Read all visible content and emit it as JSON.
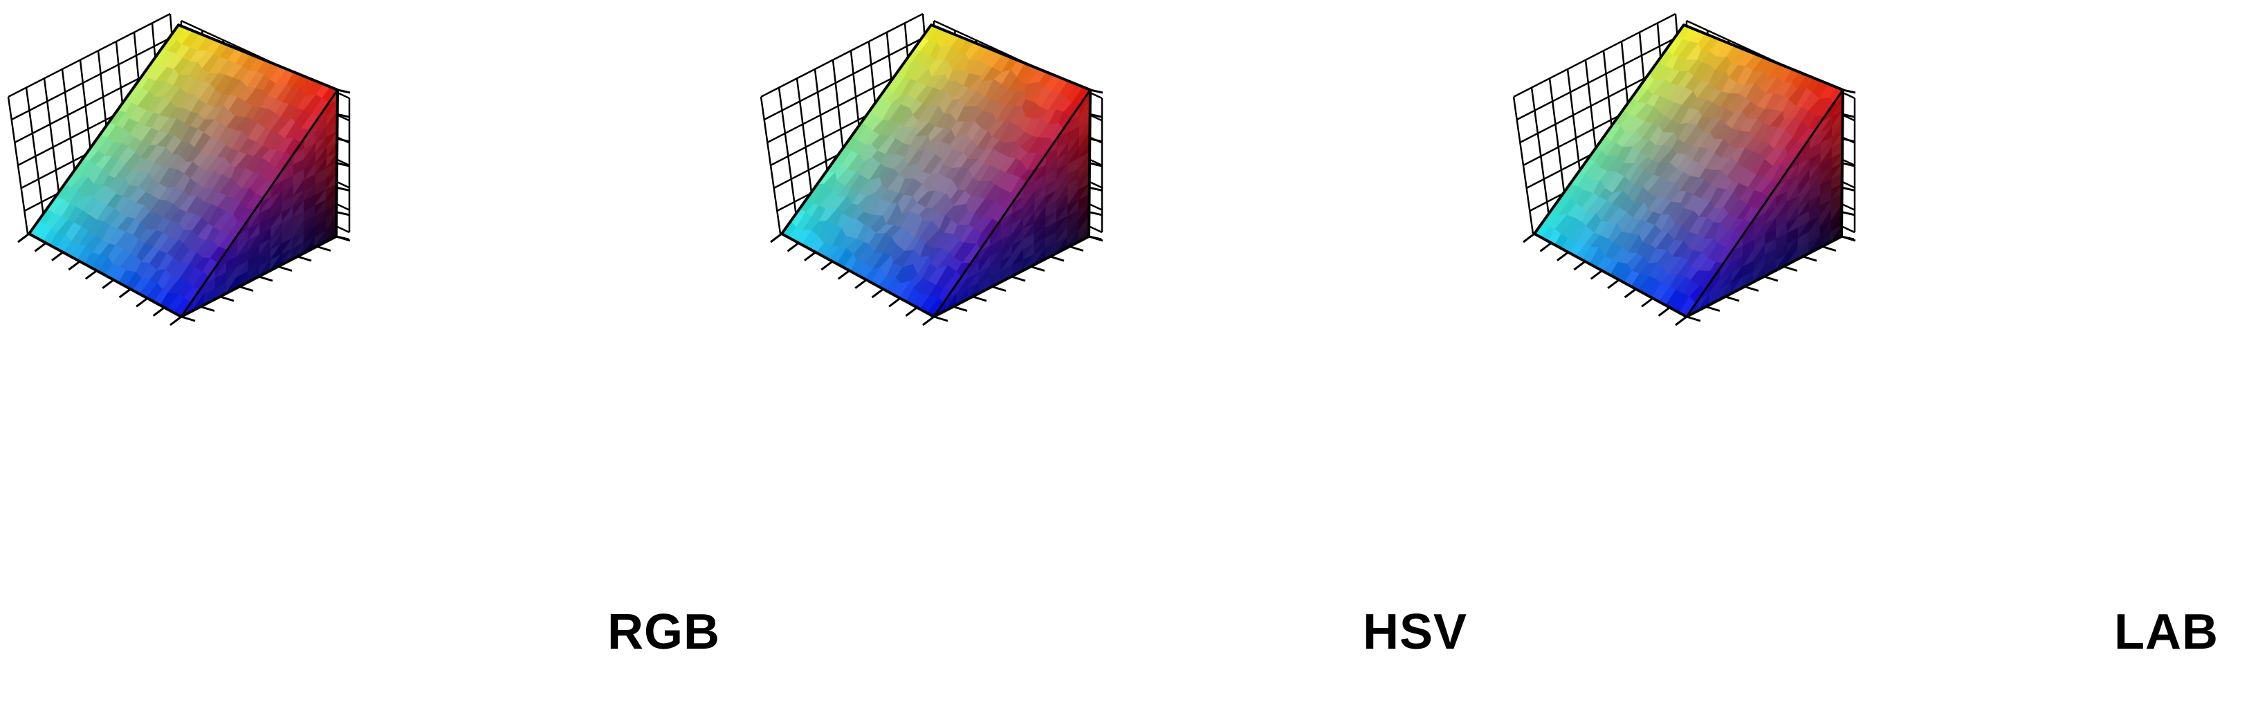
{
  "figure": {
    "panels": [
      {
        "label": "RGB"
      },
      {
        "label": "HSV"
      },
      {
        "label": "LAB"
      }
    ]
  }
}
